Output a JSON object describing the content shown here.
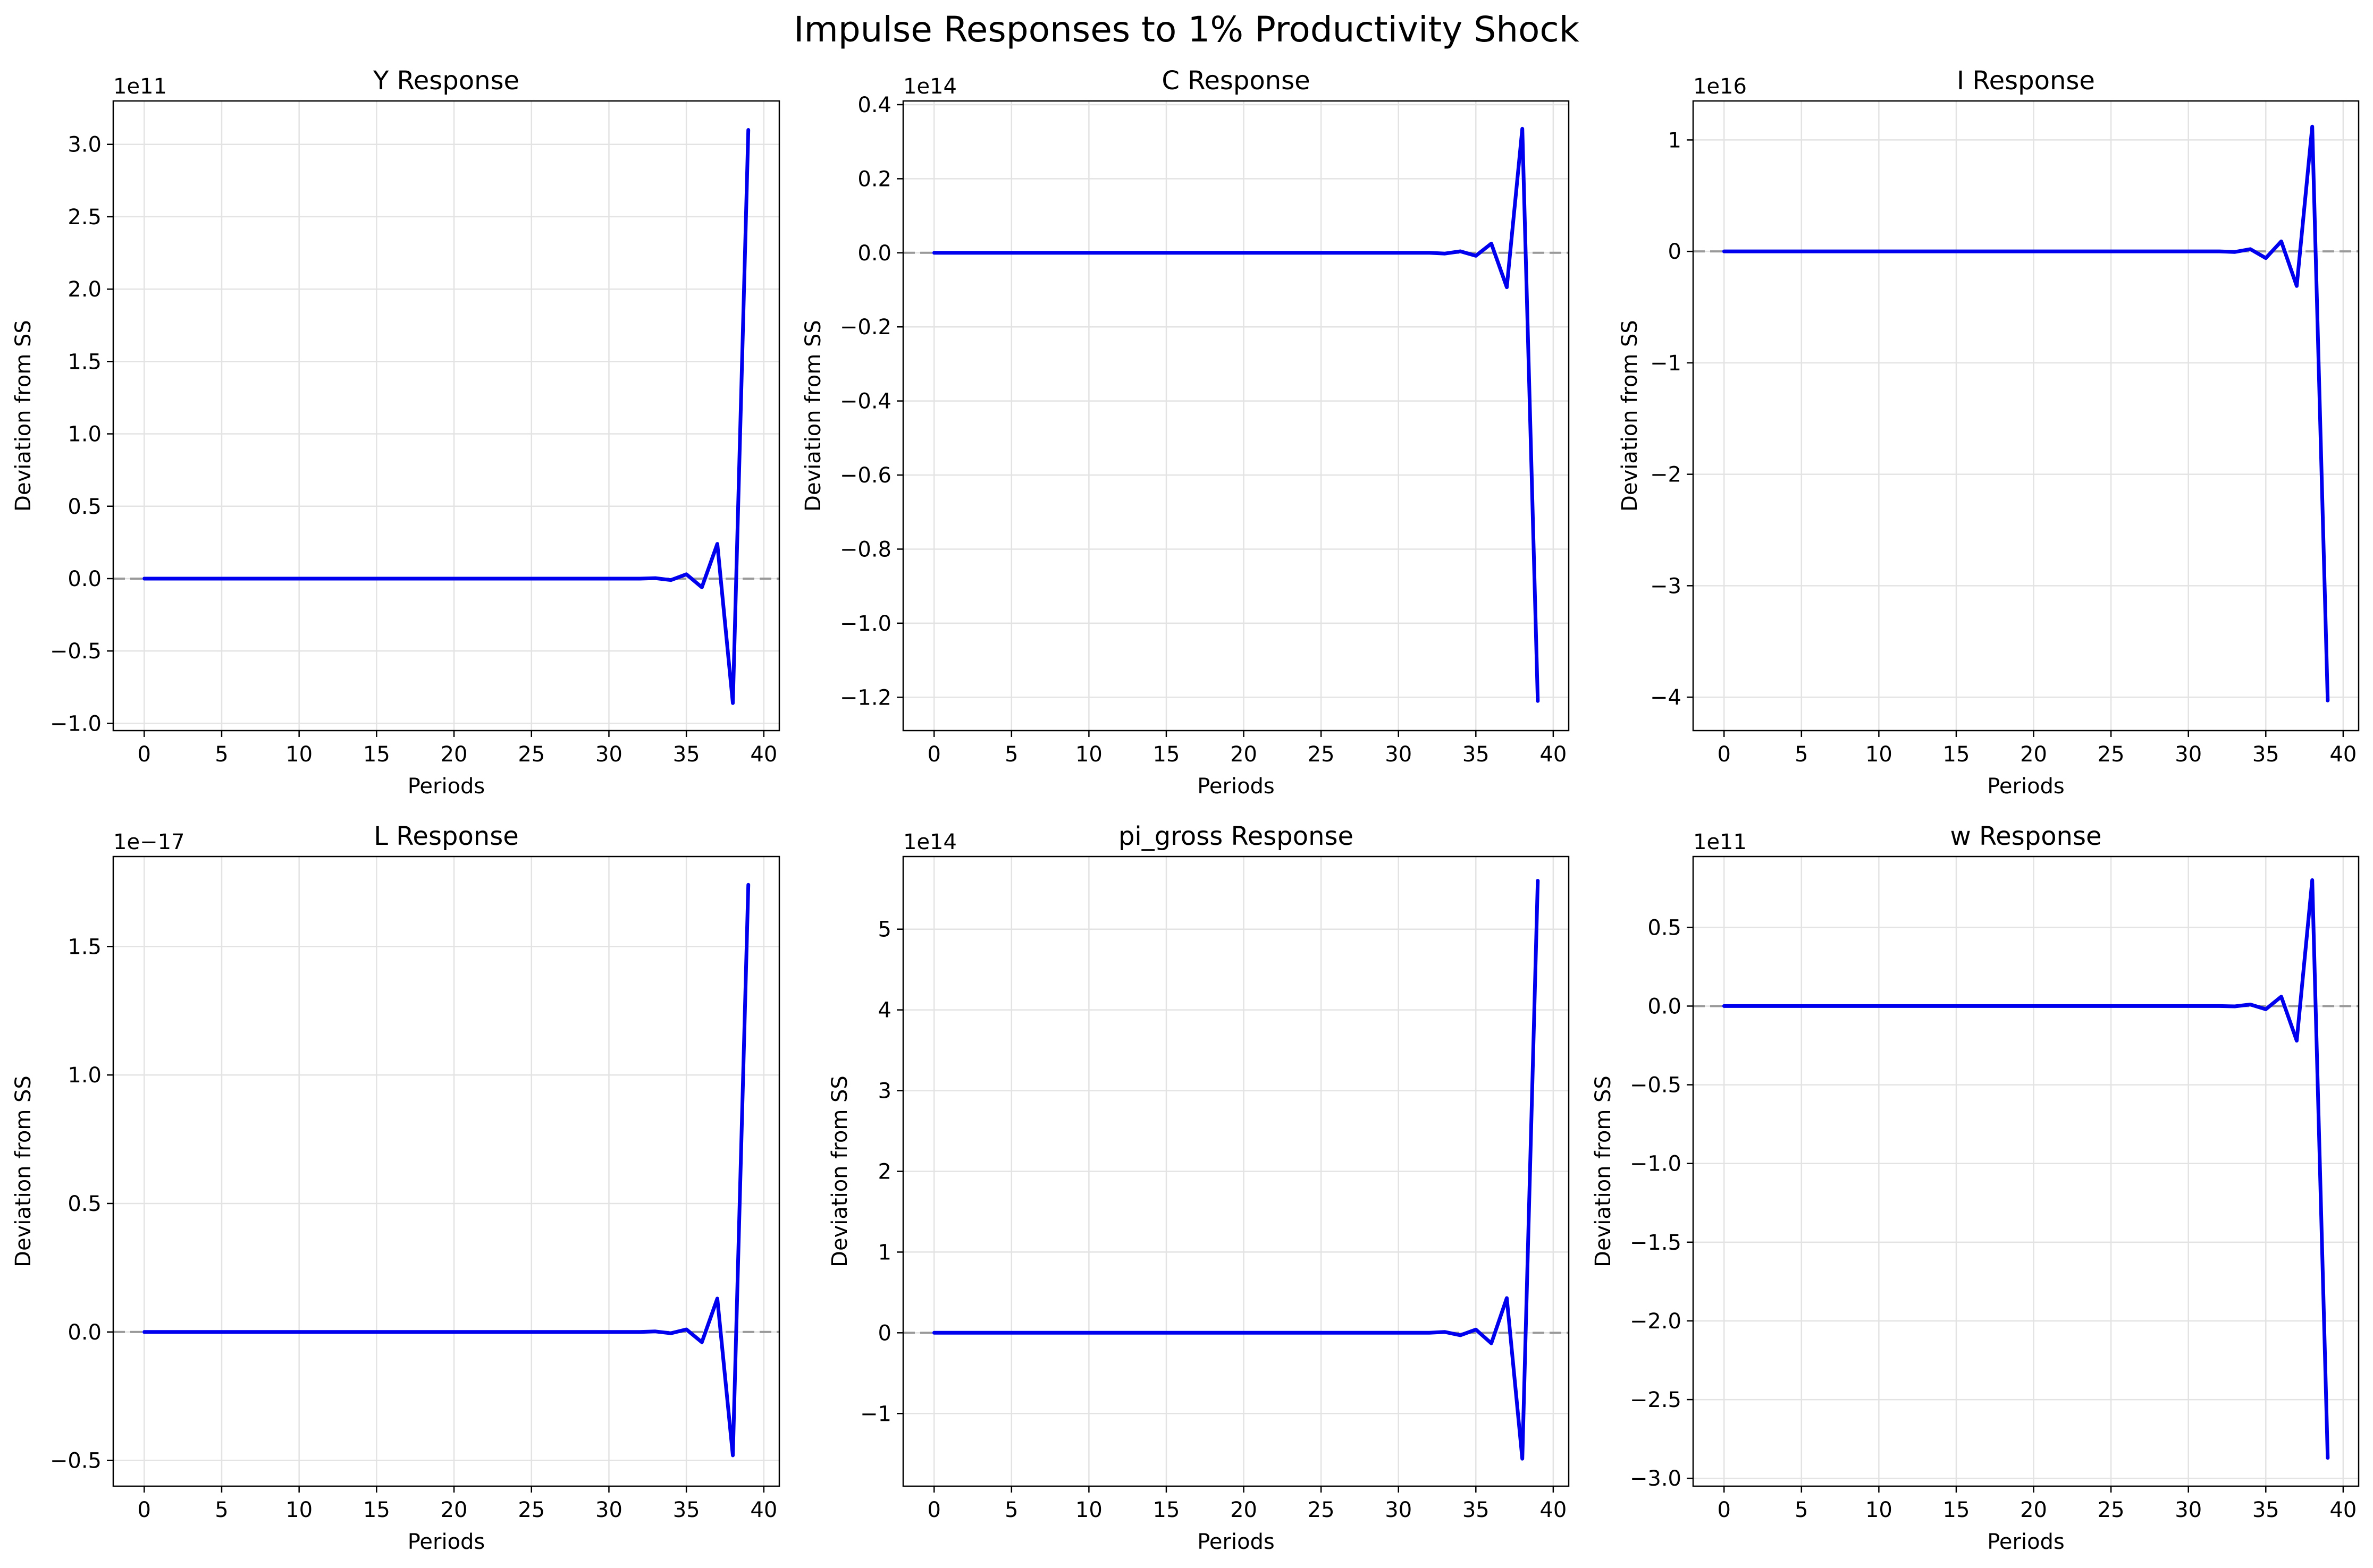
{
  "figure": {
    "title": "Impulse Responses to 1% Productivity Shock"
  },
  "style": {
    "line_color": "#0000ee",
    "zero_line_color": "#999999",
    "grid_color": "#e3e3e3",
    "axis_color": "#000000",
    "background": "#ffffff"
  },
  "chart_data": [
    {
      "type": "line",
      "title": "Y Response",
      "xlabel": "Periods",
      "ylabel": "Deviation from SS",
      "offset_label": "1e11",
      "xlim": [
        -2,
        41
      ],
      "ylim": [
        -1.05,
        3.3
      ],
      "xticks": [
        0,
        5,
        10,
        15,
        20,
        25,
        30,
        35,
        40
      ],
      "yticks": [
        -1.0,
        -0.5,
        0.0,
        0.5,
        1.0,
        1.5,
        2.0,
        2.5,
        3.0
      ],
      "ytick_labels": [
        "−1.0",
        "−0.5",
        "0.0",
        "0.5",
        "1.0",
        "1.5",
        "2.0",
        "2.5",
        "3.0"
      ],
      "grid": true,
      "zero_line": true,
      "x": [
        0,
        1,
        2,
        3,
        4,
        5,
        6,
        7,
        8,
        9,
        10,
        11,
        12,
        13,
        14,
        15,
        16,
        17,
        18,
        19,
        20,
        21,
        22,
        23,
        24,
        25,
        26,
        27,
        28,
        29,
        30,
        31,
        32,
        33,
        34,
        35,
        36,
        37,
        38,
        39
      ],
      "y": [
        0,
        0,
        0,
        0,
        0,
        0,
        0,
        0,
        0,
        0,
        0,
        0,
        0,
        0,
        0,
        0,
        0,
        0,
        0,
        0,
        0,
        0,
        0,
        0,
        0,
        0,
        0,
        0,
        0,
        0,
        0,
        0,
        0,
        0.003,
        -0.01,
        0.03,
        -0.06,
        0.24,
        -0.86,
        3.1
      ]
    },
    {
      "type": "line",
      "title": "C Response",
      "xlabel": "Periods",
      "ylabel": "Deviation from SS",
      "offset_label": "1e14",
      "xlim": [
        -2,
        41
      ],
      "ylim": [
        -1.29,
        0.41
      ],
      "xticks": [
        0,
        5,
        10,
        15,
        20,
        25,
        30,
        35,
        40
      ],
      "yticks": [
        -1.2,
        -1.0,
        -0.8,
        -0.6,
        -0.4,
        -0.2,
        0.0,
        0.2,
        0.4
      ],
      "ytick_labels": [
        "−1.2",
        "−1.0",
        "−0.8",
        "−0.6",
        "−0.4",
        "−0.2",
        "0.0",
        "0.2",
        "0.4"
      ],
      "grid": true,
      "zero_line": true,
      "x": [
        0,
        1,
        2,
        3,
        4,
        5,
        6,
        7,
        8,
        9,
        10,
        11,
        12,
        13,
        14,
        15,
        16,
        17,
        18,
        19,
        20,
        21,
        22,
        23,
        24,
        25,
        26,
        27,
        28,
        29,
        30,
        31,
        32,
        33,
        34,
        35,
        36,
        37,
        38,
        39
      ],
      "y": [
        0,
        0,
        0,
        0,
        0,
        0,
        0,
        0,
        0,
        0,
        0,
        0,
        0,
        0,
        0,
        0,
        0,
        0,
        0,
        0,
        0,
        0,
        0,
        0,
        0,
        0,
        0,
        0,
        0,
        0,
        0,
        0,
        0,
        -0.002,
        0.004,
        -0.008,
        0.025,
        -0.093,
        0.335,
        -1.21
      ]
    },
    {
      "type": "line",
      "title": "I Response",
      "xlabel": "Periods",
      "ylabel": "Deviation from SS",
      "offset_label": "1e16",
      "xlim": [
        -2,
        41
      ],
      "ylim": [
        -4.3,
        1.35
      ],
      "xticks": [
        0,
        5,
        10,
        15,
        20,
        25,
        30,
        35,
        40
      ],
      "yticks": [
        -4,
        -3,
        -2,
        -1,
        0,
        1
      ],
      "ytick_labels": [
        "−4",
        "−3",
        "−2",
        "−1",
        "0",
        "1"
      ],
      "grid": true,
      "zero_line": true,
      "x": [
        0,
        1,
        2,
        3,
        4,
        5,
        6,
        7,
        8,
        9,
        10,
        11,
        12,
        13,
        14,
        15,
        16,
        17,
        18,
        19,
        20,
        21,
        22,
        23,
        24,
        25,
        26,
        27,
        28,
        29,
        30,
        31,
        32,
        33,
        34,
        35,
        36,
        37,
        38,
        39
      ],
      "y": [
        0,
        0,
        0,
        0,
        0,
        0,
        0,
        0,
        0,
        0,
        0,
        0,
        0,
        0,
        0,
        0,
        0,
        0,
        0,
        0,
        0,
        0,
        0,
        0,
        0,
        0,
        0,
        0,
        0,
        0,
        0,
        0,
        0,
        -0.005,
        0.02,
        -0.06,
        0.09,
        -0.31,
        1.12,
        -4.03
      ]
    },
    {
      "type": "line",
      "title": "L Response",
      "xlabel": "Periods",
      "ylabel": "Deviation from SS",
      "offset_label": "1e−17",
      "xlim": [
        -2,
        41
      ],
      "ylim": [
        -0.6,
        1.85
      ],
      "xticks": [
        0,
        5,
        10,
        15,
        20,
        25,
        30,
        35,
        40
      ],
      "yticks": [
        -0.5,
        0.0,
        0.5,
        1.0,
        1.5
      ],
      "ytick_labels": [
        "−0.5",
        "0.0",
        "0.5",
        "1.0",
        "1.5"
      ],
      "grid": true,
      "zero_line": true,
      "x": [
        0,
        1,
        2,
        3,
        4,
        5,
        6,
        7,
        8,
        9,
        10,
        11,
        12,
        13,
        14,
        15,
        16,
        17,
        18,
        19,
        20,
        21,
        22,
        23,
        24,
        25,
        26,
        27,
        28,
        29,
        30,
        31,
        32,
        33,
        34,
        35,
        36,
        37,
        38,
        39
      ],
      "y": [
        0,
        0,
        0,
        0,
        0,
        0,
        0,
        0,
        0,
        0,
        0,
        0,
        0,
        0,
        0,
        0,
        0,
        0,
        0,
        0,
        0,
        0,
        0,
        0,
        0,
        0,
        0,
        0,
        0,
        0,
        0,
        0,
        0,
        0.002,
        -0.005,
        0.01,
        -0.04,
        0.13,
        -0.48,
        1.74
      ]
    },
    {
      "type": "line",
      "title": "pi_gross Response",
      "xlabel": "Periods",
      "ylabel": "Deviation from SS",
      "offset_label": "1e14",
      "xlim": [
        -2,
        41
      ],
      "ylim": [
        -1.9,
        5.9
      ],
      "xticks": [
        0,
        5,
        10,
        15,
        20,
        25,
        30,
        35,
        40
      ],
      "yticks": [
        -1,
        0,
        1,
        2,
        3,
        4,
        5
      ],
      "ytick_labels": [
        "−1",
        "0",
        "1",
        "2",
        "3",
        "4",
        "5"
      ],
      "grid": true,
      "zero_line": true,
      "x": [
        0,
        1,
        2,
        3,
        4,
        5,
        6,
        7,
        8,
        9,
        10,
        11,
        12,
        13,
        14,
        15,
        16,
        17,
        18,
        19,
        20,
        21,
        22,
        23,
        24,
        25,
        26,
        27,
        28,
        29,
        30,
        31,
        32,
        33,
        34,
        35,
        36,
        37,
        38,
        39
      ],
      "y": [
        0,
        0,
        0,
        0,
        0,
        0,
        0,
        0,
        0,
        0,
        0,
        0,
        0,
        0,
        0,
        0,
        0,
        0,
        0,
        0,
        0,
        0,
        0,
        0,
        0,
        0,
        0,
        0,
        0,
        0,
        0,
        0,
        0,
        0.01,
        -0.03,
        0.04,
        -0.13,
        0.43,
        -1.56,
        5.6
      ]
    },
    {
      "type": "line",
      "title": "w Response",
      "xlabel": "Periods",
      "ylabel": "Deviation from SS",
      "offset_label": "1e11",
      "xlim": [
        -2,
        41
      ],
      "ylim": [
        -3.05,
        0.95
      ],
      "xticks": [
        0,
        5,
        10,
        15,
        20,
        25,
        30,
        35,
        40
      ],
      "yticks": [
        -3.0,
        -2.5,
        -2.0,
        -1.5,
        -1.0,
        -0.5,
        0.0,
        0.5
      ],
      "ytick_labels": [
        "−3.0",
        "−2.5",
        "−2.0",
        "−1.5",
        "−1.0",
        "−0.5",
        "0.0",
        "0.5"
      ],
      "grid": true,
      "zero_line": true,
      "x": [
        0,
        1,
        2,
        3,
        4,
        5,
        6,
        7,
        8,
        9,
        10,
        11,
        12,
        13,
        14,
        15,
        16,
        17,
        18,
        19,
        20,
        21,
        22,
        23,
        24,
        25,
        26,
        27,
        28,
        29,
        30,
        31,
        32,
        33,
        34,
        35,
        36,
        37,
        38,
        39
      ],
      "y": [
        0,
        0,
        0,
        0,
        0,
        0,
        0,
        0,
        0,
        0,
        0,
        0,
        0,
        0,
        0,
        0,
        0,
        0,
        0,
        0,
        0,
        0,
        0,
        0,
        0,
        0,
        0,
        0,
        0,
        0,
        0,
        0,
        0,
        -0.002,
        0.01,
        -0.02,
        0.06,
        -0.22,
        0.8,
        -2.87
      ]
    }
  ]
}
